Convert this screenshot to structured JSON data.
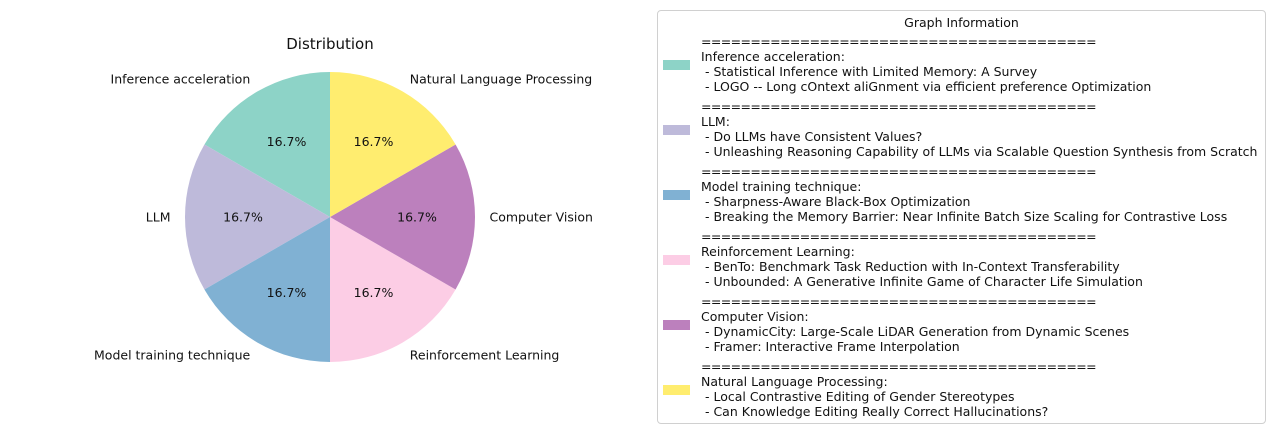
{
  "chart_data": {
    "type": "pie",
    "title": "Distribution",
    "categories": [
      "Inference acceleration",
      "LLM",
      "Model training technique",
      "Reinforcement Learning",
      "Computer Vision",
      "Natural Language Processing"
    ],
    "values": [
      16.7,
      16.7,
      16.7,
      16.7,
      16.7,
      16.7
    ],
    "value_labels": [
      "16.7%",
      "16.7%",
      "16.7%",
      "16.7%",
      "16.7%",
      "16.7%"
    ],
    "colors": [
      "#8dd3c7",
      "#bebada",
      "#80b1d3",
      "#fccde5",
      "#bc80bd",
      "#ffed6f"
    ],
    "start_angle_deg": 90,
    "direction": "counterclockwise",
    "legend_placement": "right"
  },
  "legend": {
    "title": "Graph Information",
    "separator": "========================================",
    "entries": [
      {
        "label": "Inference acceleration:",
        "items": [
          " - Statistical Inference with Limited Memory: A Survey",
          " - LOGO -- Long cOntext aliGnment via efficient preference Optimization"
        ]
      },
      {
        "label": "LLM:",
        "items": [
          " - Do LLMs have Consistent Values?",
          " - Unleashing Reasoning Capability of LLMs via Scalable Question Synthesis from Scratch"
        ]
      },
      {
        "label": "Model training technique:",
        "items": [
          " - Sharpness-Aware Black-Box Optimization",
          " - Breaking the Memory Barrier: Near Infinite Batch Size Scaling for Contrastive Loss"
        ]
      },
      {
        "label": "Reinforcement Learning:",
        "items": [
          " - BenTo: Benchmark Task Reduction with In-Context Transferability",
          " - Unbounded: A Generative Infinite Game of Character Life Simulation"
        ]
      },
      {
        "label": "Computer Vision:",
        "items": [
          " - DynamicCity: Large-Scale LiDAR Generation from Dynamic Scenes",
          " - Framer: Interactive Frame Interpolation"
        ]
      },
      {
        "label": "Natural Language Processing:",
        "items": [
          " - Local Contrastive Editing of Gender Stereotypes",
          " - Can Knowledge Editing Really Correct Hallucinations?"
        ]
      }
    ]
  }
}
